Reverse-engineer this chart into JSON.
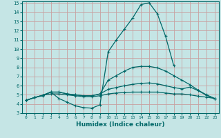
{
  "xlabel": "Humidex (Indice chaleur)",
  "xlim": [
    -0.5,
    23.5
  ],
  "ylim": [
    3,
    15.2
  ],
  "xticks": [
    0,
    1,
    2,
    3,
    4,
    5,
    6,
    7,
    8,
    9,
    10,
    11,
    12,
    13,
    14,
    15,
    16,
    17,
    18,
    19,
    20,
    21,
    22,
    23
  ],
  "yticks": [
    3,
    4,
    5,
    6,
    7,
    8,
    9,
    10,
    11,
    12,
    13,
    14,
    15
  ],
  "background_color": "#c5e5e5",
  "grid_color": "#c8a0a0",
  "line_color": "#006868",
  "line1_x": [
    0,
    1,
    2,
    3,
    4,
    5,
    6,
    7,
    8,
    9,
    10,
    11,
    12,
    13,
    14,
    15,
    16,
    17,
    18,
    19,
    20,
    21,
    22,
    23
  ],
  "line1_y": [
    4.4,
    4.7,
    4.9,
    5.3,
    4.6,
    4.2,
    3.8,
    3.6,
    3.55,
    3.9,
    9.7,
    11.0,
    12.2,
    13.4,
    14.85,
    15.05,
    13.85,
    11.4,
    8.2,
    null,
    null,
    null,
    null,
    null
  ],
  "line2_x": [
    0,
    1,
    2,
    3,
    4,
    5,
    6,
    7,
    8,
    9,
    10,
    11,
    12,
    13,
    14,
    15,
    16,
    17,
    18,
    19,
    20,
    21,
    22,
    23
  ],
  "line2_y": [
    4.4,
    4.7,
    4.95,
    5.3,
    5.3,
    5.1,
    5.0,
    4.9,
    4.9,
    5.1,
    6.6,
    7.1,
    7.6,
    8.0,
    8.1,
    8.1,
    7.95,
    7.6,
    7.1,
    6.6,
    6.1,
    5.5,
    5.0,
    4.6
  ],
  "line3_x": [
    0,
    1,
    2,
    3,
    4,
    5,
    6,
    7,
    8,
    9,
    10,
    11,
    12,
    13,
    14,
    15,
    16,
    17,
    18,
    19,
    20,
    21,
    22,
    23
  ],
  "line3_y": [
    4.4,
    4.7,
    4.95,
    5.3,
    5.3,
    5.1,
    5.0,
    4.9,
    4.9,
    5.1,
    5.6,
    5.8,
    6.0,
    6.15,
    6.25,
    6.3,
    6.2,
    6.0,
    5.8,
    5.65,
    5.85,
    5.45,
    4.95,
    4.6
  ],
  "line4_x": [
    0,
    1,
    2,
    3,
    4,
    5,
    6,
    7,
    8,
    9,
    10,
    11,
    12,
    13,
    14,
    15,
    16,
    17,
    18,
    19,
    20,
    21,
    22,
    23
  ],
  "line4_y": [
    4.4,
    4.7,
    4.95,
    5.1,
    5.1,
    5.0,
    4.9,
    4.8,
    4.8,
    4.9,
    5.1,
    5.2,
    5.25,
    5.3,
    5.3,
    5.3,
    5.3,
    5.2,
    5.1,
    5.1,
    5.0,
    4.85,
    4.75,
    4.6
  ]
}
